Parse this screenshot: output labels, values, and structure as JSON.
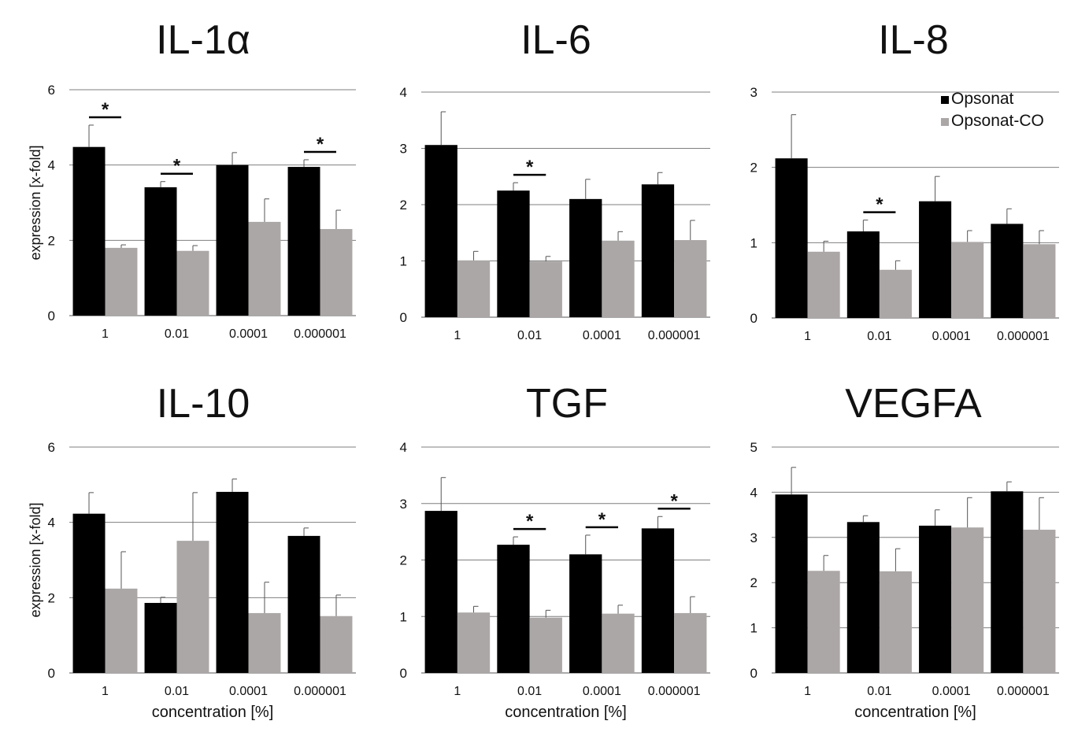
{
  "colors": {
    "series_1": "#000000",
    "series_2": "#aba7a6",
    "grid": "#7f7f7f"
  },
  "legend": {
    "placement": "top-right of IL-8 panel",
    "entries": [
      "Opsonat",
      "Opsonat-CO"
    ]
  },
  "chart_data": [
    {
      "type": "bar",
      "title": "IL-1α",
      "ylabel": "expression [x-fold]",
      "xlabel": "",
      "ylim": [
        0,
        6
      ],
      "yticks": [
        0,
        2,
        4,
        6
      ],
      "grid": true,
      "categories": [
        "1",
        "0.01",
        "0.0001",
        "0.000001"
      ],
      "series": [
        {
          "name": "Opsonat",
          "values": [
            4.48,
            3.41,
            4.0,
            3.95
          ],
          "error_upper": [
            5.06,
            3.56,
            4.33,
            4.14
          ]
        },
        {
          "name": "Opsonat-CO",
          "values": [
            1.8,
            1.72,
            2.49,
            2.3
          ],
          "error_upper": [
            1.88,
            1.86,
            3.1,
            2.8
          ]
        }
      ],
      "significance": [
        "*",
        "*",
        "",
        "*"
      ]
    },
    {
      "type": "bar",
      "title": "IL-6",
      "ylabel": "",
      "xlabel": "",
      "ylim": [
        0,
        4
      ],
      "yticks": [
        0,
        1,
        2,
        3,
        4
      ],
      "grid": true,
      "categories": [
        "1",
        "0.01",
        "0.0001",
        "0.000001"
      ],
      "series": [
        {
          "name": "Opsonat",
          "values": [
            3.06,
            2.25,
            2.1,
            2.36
          ],
          "error_upper": [
            3.65,
            2.39,
            2.45,
            2.57
          ]
        },
        {
          "name": "Opsonat-CO",
          "values": [
            1.01,
            0.99,
            1.36,
            1.37
          ],
          "error_upper": [
            1.17,
            1.08,
            1.52,
            1.72
          ]
        }
      ],
      "significance": [
        "",
        "*",
        "",
        ""
      ]
    },
    {
      "type": "bar",
      "title": "IL-8",
      "ylabel": "",
      "xlabel": "",
      "ylim": [
        0,
        3
      ],
      "yticks": [
        0,
        1,
        2,
        3
      ],
      "grid": true,
      "legend": true,
      "categories": [
        "1",
        "0.01",
        "0.0001",
        "0.000001"
      ],
      "series": [
        {
          "name": "Opsonat",
          "values": [
            2.12,
            1.15,
            1.55,
            1.25
          ],
          "error_upper": [
            2.7,
            1.3,
            1.88,
            1.45
          ]
        },
        {
          "name": "Opsonat-CO",
          "values": [
            0.88,
            0.64,
            1.01,
            0.98
          ],
          "error_upper": [
            1.02,
            0.76,
            1.16,
            1.16
          ]
        }
      ],
      "significance": [
        "",
        "*",
        "",
        ""
      ]
    },
    {
      "type": "bar",
      "title": "IL-10",
      "ylabel": "expression [x-fold]",
      "xlabel": "concentration [%]",
      "ylim": [
        0,
        6
      ],
      "yticks": [
        0,
        2,
        4,
        6
      ],
      "grid": true,
      "categories": [
        "1",
        "0.01",
        "0.0001",
        "0.000001"
      ],
      "series": [
        {
          "name": "Opsonat",
          "values": [
            4.23,
            1.86,
            4.81,
            3.64
          ],
          "error_upper": [
            4.79,
            2.01,
            5.15,
            3.85
          ]
        },
        {
          "name": "Opsonat-CO",
          "values": [
            2.24,
            3.51,
            1.59,
            1.51
          ],
          "error_upper": [
            3.22,
            4.79,
            2.41,
            2.07
          ]
        }
      ],
      "significance": [
        "",
        "",
        "",
        ""
      ]
    },
    {
      "type": "bar",
      "title": "TGF",
      "ylabel": "",
      "xlabel": "concentration [%]",
      "ylim": [
        0,
        4
      ],
      "yticks": [
        0,
        1,
        2,
        3,
        4
      ],
      "grid": true,
      "categories": [
        "1",
        "0.01",
        "0.0001",
        "0.000001"
      ],
      "series": [
        {
          "name": "Opsonat",
          "values": [
            2.87,
            2.27,
            2.1,
            2.56
          ],
          "error_upper": [
            3.46,
            2.41,
            2.44,
            2.77
          ]
        },
        {
          "name": "Opsonat-CO",
          "values": [
            1.07,
            0.98,
            1.05,
            1.06
          ],
          "error_upper": [
            1.18,
            1.11,
            1.2,
            1.35
          ]
        }
      ],
      "significance": [
        "",
        "*",
        "*",
        "*"
      ]
    },
    {
      "type": "bar",
      "title": "VEGFA",
      "ylabel": "",
      "xlabel": "concentration [%]",
      "ylim": [
        0,
        5
      ],
      "yticks": [
        0,
        1,
        2,
        3,
        4,
        5
      ],
      "grid": true,
      "categories": [
        "1",
        "0.01",
        "0.0001",
        "0.000001"
      ],
      "series": [
        {
          "name": "Opsonat",
          "values": [
            3.95,
            3.34,
            3.26,
            4.02
          ],
          "error_upper": [
            4.55,
            3.48,
            3.61,
            4.23
          ]
        },
        {
          "name": "Opsonat-CO",
          "values": [
            2.26,
            2.25,
            3.22,
            3.17
          ],
          "error_upper": [
            2.6,
            2.75,
            3.88,
            3.88
          ]
        }
      ],
      "significance": [
        "",
        "",
        "",
        ""
      ]
    }
  ]
}
